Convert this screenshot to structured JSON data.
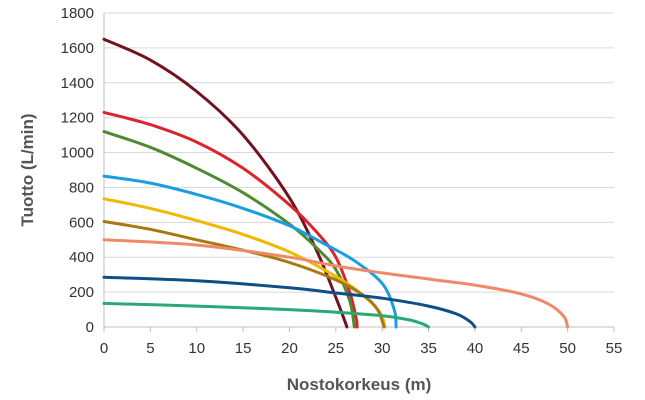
{
  "chart_data": {
    "type": "line",
    "xlabel": "Nostokorkeus (m)",
    "ylabel": "Tuotto (L/min)",
    "xlim": [
      0,
      55
    ],
    "ylim": [
      0,
      1800
    ],
    "xticks": [
      0,
      5,
      10,
      15,
      20,
      25,
      30,
      35,
      40,
      45,
      50,
      55
    ],
    "yticks": [
      0,
      200,
      400,
      600,
      800,
      1000,
      1200,
      1400,
      1600,
      1800
    ],
    "grid": "horizontal",
    "legend": "none",
    "series": [
      {
        "color": "#70121f",
        "x": [
          0,
          5,
          10,
          15,
          20,
          23,
          25,
          26,
          26.2
        ],
        "y": [
          1650,
          1530,
          1350,
          1100,
          740,
          430,
          170,
          30,
          0
        ]
      },
      {
        "color": "#d9262e",
        "x": [
          0,
          5,
          10,
          15,
          20,
          23,
          25,
          26.5,
          27.2,
          27.3
        ],
        "y": [
          1230,
          1160,
          1060,
          910,
          700,
          540,
          400,
          200,
          50,
          0
        ]
      },
      {
        "color": "#4e8a32",
        "x": [
          0,
          5,
          10,
          15,
          20,
          23,
          25,
          26.5,
          27
        ],
        "y": [
          1120,
          1030,
          910,
          770,
          590,
          450,
          330,
          150,
          0
        ]
      },
      {
        "color": "#1a9ee0",
        "x": [
          0,
          5,
          10,
          15,
          20,
          24,
          27,
          30,
          31.3,
          31.5
        ],
        "y": [
          865,
          825,
          760,
          680,
          580,
          470,
          380,
          250,
          100,
          0
        ]
      },
      {
        "color": "#f0b800",
        "x": [
          0,
          5,
          10,
          15,
          20,
          25,
          28,
          29.8,
          30.3
        ],
        "y": [
          735,
          680,
          610,
          530,
          430,
          290,
          180,
          80,
          0
        ]
      },
      {
        "color": "#a77a10",
        "x": [
          0,
          5,
          10,
          15,
          20,
          25,
          28,
          29.5,
          30.2
        ],
        "y": [
          605,
          560,
          500,
          440,
          370,
          270,
          180,
          100,
          0
        ]
      },
      {
        "color": "#ee8a6b",
        "x": [
          0,
          10,
          20,
          25,
          30,
          35,
          40,
          45,
          48,
          49.6,
          50
        ],
        "y": [
          500,
          470,
          400,
          350,
          310,
          275,
          240,
          190,
          130,
          60,
          0
        ]
      },
      {
        "color": "#0d4f86",
        "x": [
          0,
          10,
          20,
          25,
          30,
          35,
          38,
          39.5,
          40
        ],
        "y": [
          285,
          265,
          225,
          195,
          165,
          120,
          75,
          30,
          0
        ]
      },
      {
        "color": "#2aa876",
        "x": [
          0,
          10,
          20,
          25,
          30,
          33,
          34.5,
          35
        ],
        "y": [
          135,
          120,
          100,
          85,
          65,
          40,
          15,
          0
        ]
      }
    ]
  }
}
